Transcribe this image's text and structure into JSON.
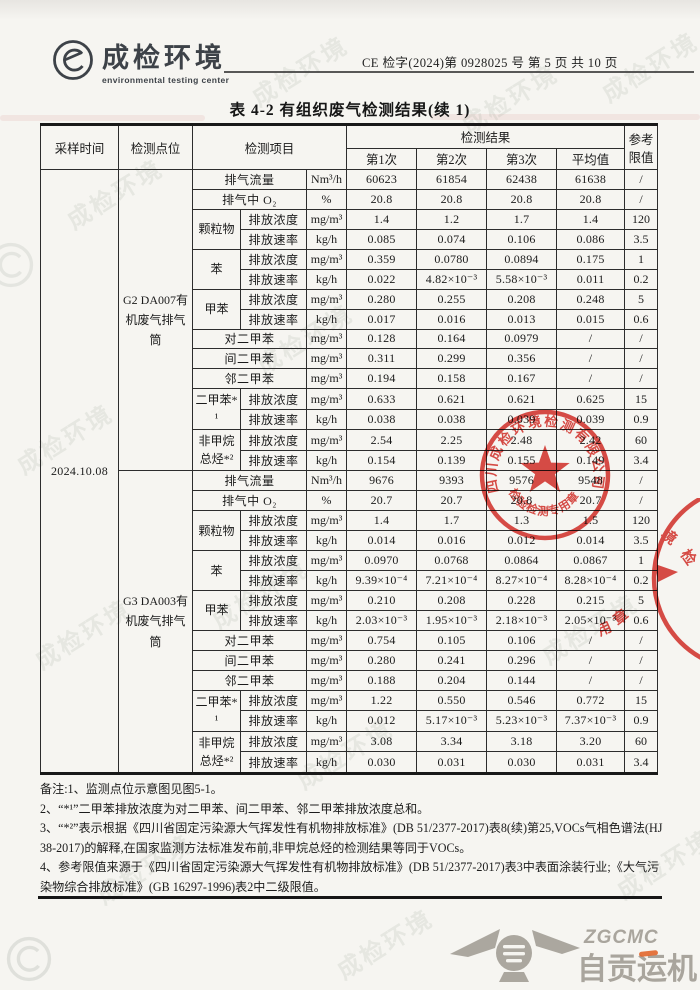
{
  "header": {
    "logo_cn": "成检环境",
    "logo_en": "environmental testing center",
    "report_no": "CE 检字(2024)第 0928025 号  第 5 页 共 10 页"
  },
  "title": "表 4-2 有组织废气检测结果(续 1)",
  "table": {
    "col_time": "采样时间",
    "col_point": "检测点位",
    "col_item": "检测项目",
    "col_result": "检测结果",
    "col_limit": "参考限值",
    "runs": [
      "第1次",
      "第2次",
      "第3次",
      "平均值"
    ],
    "sample_time": "2024.10.08",
    "sections": [
      {
        "point": "G2 DA007有机废气排气筒",
        "rows": [
          {
            "t": "full",
            "label": "排气流量",
            "unit": "Nm³/h",
            "v": [
              "60623",
              "61854",
              "62438",
              "61638",
              "/"
            ]
          },
          {
            "t": "full",
            "label": "排气中 O₂",
            "unit": "%",
            "v": [
              "20.8",
              "20.8",
              "20.8",
              "20.8",
              "/"
            ]
          },
          {
            "t": "grp",
            "group": "颗粒物",
            "rows": 2,
            "label": "排放浓度",
            "unit": "mg/m³",
            "v": [
              "1.4",
              "1.2",
              "1.7",
              "1.4",
              "120"
            ]
          },
          {
            "t": "sub",
            "label": "排放速率",
            "unit": "kg/h",
            "v": [
              "0.085",
              "0.074",
              "0.106",
              "0.086",
              "3.5"
            ]
          },
          {
            "t": "grp",
            "group": "苯",
            "rows": 2,
            "label": "排放浓度",
            "unit": "mg/m³",
            "v": [
              "0.359",
              "0.0780",
              "0.0894",
              "0.175",
              "1"
            ]
          },
          {
            "t": "sub",
            "label": "排放速率",
            "unit": "kg/h",
            "v": [
              "0.022",
              "4.82×10⁻³",
              "5.58×10⁻³",
              "0.011",
              "0.2"
            ]
          },
          {
            "t": "grp",
            "group": "甲苯",
            "rows": 2,
            "label": "排放浓度",
            "unit": "mg/m³",
            "v": [
              "0.280",
              "0.255",
              "0.208",
              "0.248",
              "5"
            ]
          },
          {
            "t": "sub",
            "label": "排放速率",
            "unit": "kg/h",
            "v": [
              "0.017",
              "0.016",
              "0.013",
              "0.015",
              "0.6"
            ]
          },
          {
            "t": "full",
            "label": "对二甲苯",
            "unit": "mg/m³",
            "v": [
              "0.128",
              "0.164",
              "0.0979",
              "/",
              "/"
            ]
          },
          {
            "t": "full",
            "label": "间二甲苯",
            "unit": "mg/m³",
            "v": [
              "0.311",
              "0.299",
              "0.356",
              "/",
              "/"
            ]
          },
          {
            "t": "full",
            "label": "邻二甲苯",
            "unit": "mg/m³",
            "v": [
              "0.194",
              "0.158",
              "0.167",
              "/",
              "/"
            ]
          },
          {
            "t": "grp",
            "group": "二甲苯*¹",
            "rows": 2,
            "label": "排放浓度",
            "unit": "mg/m³",
            "v": [
              "0.633",
              "0.621",
              "0.621",
              "0.625",
              "15"
            ]
          },
          {
            "t": "sub",
            "label": "排放速率",
            "unit": "kg/h",
            "v": [
              "0.038",
              "0.038",
              "0.039",
              "0.039",
              "0.9"
            ]
          },
          {
            "t": "grp",
            "group": "非甲烷总烃*²",
            "rows": 2,
            "label": "排放浓度",
            "unit": "mg/m³",
            "v": [
              "2.54",
              "2.25",
              "2.48",
              "2.42",
              "60"
            ]
          },
          {
            "t": "sub",
            "label": "排放速率",
            "unit": "kg/h",
            "v": [
              "0.154",
              "0.139",
              "0.155",
              "0.149",
              "3.4"
            ]
          }
        ]
      },
      {
        "point": "G3 DA003有机废气排气筒",
        "rows": [
          {
            "t": "full",
            "label": "排气流量",
            "unit": "Nm³/h",
            "v": [
              "9676",
              "9393",
              "9576",
              "9548",
              "/"
            ]
          },
          {
            "t": "full",
            "label": "排气中 O₂",
            "unit": "%",
            "v": [
              "20.7",
              "20.7",
              "20.8",
              "20.7",
              "/"
            ]
          },
          {
            "t": "grp",
            "group": "颗粒物",
            "rows": 2,
            "label": "排放浓度",
            "unit": "mg/m³",
            "v": [
              "1.4",
              "1.7",
              "1.3",
              "1.5",
              "120"
            ]
          },
          {
            "t": "sub",
            "label": "排放速率",
            "unit": "kg/h",
            "v": [
              "0.014",
              "0.016",
              "0.012",
              "0.014",
              "3.5"
            ]
          },
          {
            "t": "grp",
            "group": "苯",
            "rows": 2,
            "label": "排放浓度",
            "unit": "mg/m³",
            "v": [
              "0.0970",
              "0.0768",
              "0.0864",
              "0.0867",
              "1"
            ]
          },
          {
            "t": "sub",
            "label": "排放速率",
            "unit": "kg/h",
            "v": [
              "9.39×10⁻⁴",
              "7.21×10⁻⁴",
              "8.27×10⁻⁴",
              "8.28×10⁻⁴",
              "0.2"
            ]
          },
          {
            "t": "grp",
            "group": "甲苯",
            "rows": 2,
            "label": "排放浓度",
            "unit": "mg/m³",
            "v": [
              "0.210",
              "0.208",
              "0.228",
              "0.215",
              "5"
            ]
          },
          {
            "t": "sub",
            "label": "排放速率",
            "unit": "kg/h",
            "v": [
              "2.03×10⁻³",
              "1.95×10⁻³",
              "2.18×10⁻³",
              "2.05×10⁻³",
              "0.6"
            ]
          },
          {
            "t": "full",
            "label": "对二甲苯",
            "unit": "mg/m³",
            "v": [
              "0.754",
              "0.105",
              "0.106",
              "/",
              "/"
            ]
          },
          {
            "t": "full",
            "label": "间二甲苯",
            "unit": "mg/m³",
            "v": [
              "0.280",
              "0.241",
              "0.296",
              "/",
              "/"
            ]
          },
          {
            "t": "full",
            "label": "邻二甲苯",
            "unit": "mg/m³",
            "v": [
              "0.188",
              "0.204",
              "0.144",
              "/",
              "/"
            ]
          },
          {
            "t": "grp",
            "group": "二甲苯*¹",
            "rows": 2,
            "label": "排放浓度",
            "unit": "mg/m³",
            "v": [
              "1.22",
              "0.550",
              "0.546",
              "0.772",
              "15"
            ]
          },
          {
            "t": "sub",
            "label": "排放速率",
            "unit": "kg/h",
            "v": [
              "0.012",
              "5.17×10⁻³",
              "5.23×10⁻³",
              "7.37×10⁻³",
              "0.9"
            ]
          },
          {
            "t": "grp",
            "group": "非甲烷总烃*²",
            "rows": 2,
            "label": "排放浓度",
            "unit": "mg/m³",
            "v": [
              "3.08",
              "3.34",
              "3.18",
              "3.20",
              "60"
            ]
          },
          {
            "t": "sub",
            "label": "排放速率",
            "unit": "kg/h",
            "v": [
              "0.030",
              "0.031",
              "0.030",
              "0.031",
              "3.4"
            ]
          }
        ]
      }
    ]
  },
  "notes": [
    "备注:1、监测点位示意图见图5-1。",
    "2、“*¹”二甲苯排放浓度为对二甲苯、间二甲苯、邻二甲苯排放浓度总和。",
    "3、“*²”表示根据《四川省固定污染源大气挥发性有机物排放标准》(DB 51/2377-2017)表8(续)第25,VOCs气相色谱法(HJ 38-2017)的解释,在国家监测方法标准发布前,非甲烷总烃的检测结果等同于VOCs。",
    "4、参考限值来源于《四川省固定污染源大气挥发性有机物排放标准》(DB 51/2377-2017)表3中表面涂装行业;《大气污染物综合排放标准》(GB 16297-1996)表2中二级限值。"
  ],
  "stamp": {
    "company": "四川成检环境检测有限公司",
    "label": "检验检测专用章",
    "color": "#d9352f"
  },
  "edge_stamp": {
    "chars": [
      "境",
      "检",
      "用",
      "章"
    ]
  },
  "footer_logo": {
    "abbr": "ZGCMC",
    "name": "自贡运机"
  },
  "watermark_text": "成检环境"
}
